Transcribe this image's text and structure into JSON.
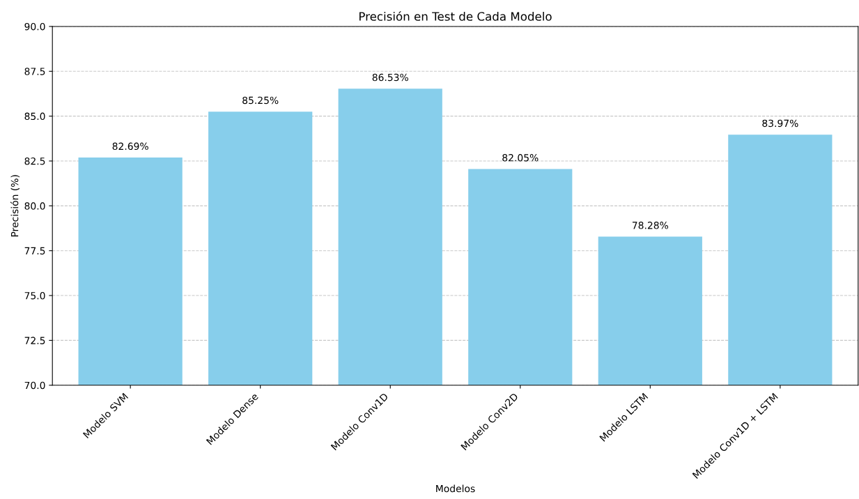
{
  "chart_data": {
    "type": "bar",
    "title": "Precisión en Test de Cada Modelo",
    "xlabel": "Modelos",
    "ylabel": "Precisión (%)",
    "categories": [
      "Modelo SVM",
      "Modelo Dense",
      "Modelo Conv1D",
      "Modelo Conv2D",
      "Modelo LSTM",
      "Modelo Conv1D + LSTM"
    ],
    "values": [
      82.69,
      85.25,
      86.53,
      82.05,
      78.28,
      83.97
    ],
    "value_labels": [
      "82.69%",
      "85.25%",
      "86.53%",
      "82.05%",
      "78.28%",
      "83.97%"
    ],
    "color": "#87ceeb",
    "ylim": [
      70,
      90
    ],
    "yticks": [
      {
        "value": 70,
        "label": "70.0"
      },
      {
        "value": 72.5,
        "label": "72.5"
      },
      {
        "value": 75,
        "label": "75.0"
      },
      {
        "value": 77.5,
        "label": "77.5"
      },
      {
        "value": 80,
        "label": "80.0"
      },
      {
        "value": 82.5,
        "label": "82.5"
      },
      {
        "value": 85,
        "label": "85.0"
      },
      {
        "value": 87.5,
        "label": "87.5"
      },
      {
        "value": 90,
        "label": "90.0"
      }
    ],
    "grid": "y"
  }
}
